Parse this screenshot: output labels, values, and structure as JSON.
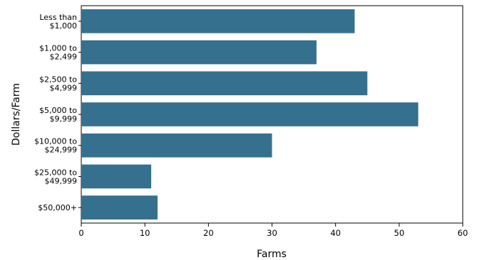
{
  "chart_data": {
    "type": "bar",
    "orientation": "horizontal",
    "categories": [
      [
        "Less than",
        "$1,000"
      ],
      [
        "$1,000 to",
        "$2,499"
      ],
      [
        "$2,500 to",
        "$4,999"
      ],
      [
        "$5,000 to",
        "$9,999"
      ],
      [
        "$10,000 to",
        "$24,999"
      ],
      [
        "$25,000 to",
        "$49,999"
      ],
      [
        "$50,000+"
      ]
    ],
    "values": [
      43,
      37,
      45,
      53,
      30,
      11,
      12
    ],
    "xlabel": "Farms",
    "ylabel": "Dollars/Farm",
    "xlim": [
      0,
      60
    ],
    "xticks": [
      0,
      10,
      20,
      30,
      40,
      50,
      60
    ],
    "grid": false,
    "bar_color": "#36708f"
  }
}
